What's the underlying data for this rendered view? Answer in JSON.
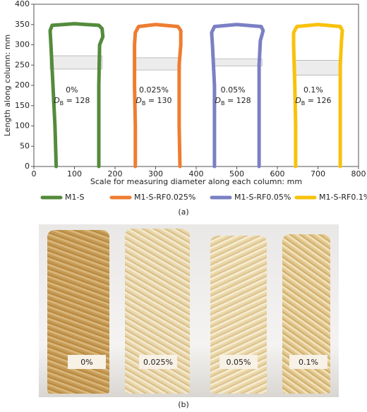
{
  "chart_data": {
    "type": "line",
    "x_label": "Scale for measuring diameter along each column: mm",
    "y_label": "Length along column: mm",
    "caption": "(a)",
    "xlim": [
      0,
      800
    ],
    "xticks": [
      0,
      100,
      200,
      300,
      400,
      500,
      600,
      700,
      800
    ],
    "ylim": [
      0,
      400
    ],
    "yticks": [
      0,
      50,
      100,
      150,
      200,
      250,
      300,
      350,
      400
    ],
    "series": [
      {
        "name": "M1-S",
        "color": "#548b3c",
        "x": [
          55,
          52,
          47,
          42,
          40,
          45,
          100,
          160,
          168,
          170,
          162,
          160,
          160
        ],
        "values": [
          0,
          100,
          200,
          300,
          335,
          348,
          352,
          348,
          340,
          320,
          300,
          200,
          0
        ]
      },
      {
        "name": "M1-S-RF0.025%",
        "color": "#ee7d31",
        "x": [
          250,
          250,
          248,
          248,
          250,
          258,
          300,
          355,
          362,
          362,
          358,
          358,
          360
        ],
        "values": [
          0,
          100,
          200,
          300,
          330,
          345,
          350,
          345,
          335,
          300,
          250,
          100,
          0
        ]
      },
      {
        "name": "M1-S-RF0.05%",
        "color": "#7b80c4",
        "x": [
          445,
          445,
          445,
          440,
          438,
          445,
          500,
          560,
          565,
          558,
          555,
          555,
          555
        ],
        "values": [
          0,
          100,
          200,
          300,
          330,
          345,
          350,
          345,
          335,
          310,
          250,
          100,
          0
        ]
      },
      {
        "name": "M1-S-RF0.1%",
        "color": "#f8c20c",
        "x": [
          645,
          645,
          643,
          640,
          640,
          648,
          700,
          755,
          760,
          758,
          755,
          755,
          755
        ],
        "values": [
          0,
          100,
          200,
          300,
          330,
          345,
          350,
          345,
          335,
          310,
          250,
          100,
          0
        ]
      }
    ],
    "bands": [
      {
        "x": [
          40,
          168
        ],
        "y": [
          240,
          273
        ]
      },
      {
        "x": [
          250,
          362
        ],
        "y": [
          238,
          268
        ]
      },
      {
        "x": [
          440,
          562
        ],
        "y": [
          248,
          265
        ]
      },
      {
        "x": [
          640,
          758
        ],
        "y": [
          225,
          262
        ]
      }
    ],
    "annotations": [
      {
        "pct": "0%",
        "symbol": "D",
        "sub": "B",
        "value": " = 128"
      },
      {
        "pct": "0.025%",
        "symbol": "D",
        "sub": "B",
        "value": " = 130"
      },
      {
        "pct": "0.05%",
        "symbol": "D",
        "sub": "B",
        "value": " = 128"
      },
      {
        "pct": "0.1%",
        "symbol": "D",
        "sub": "B",
        "value": " = 126"
      }
    ]
  },
  "photo": {
    "labels": [
      "0%",
      "0.025%",
      "0.05%",
      "0.1%"
    ],
    "caption": "(b)"
  }
}
